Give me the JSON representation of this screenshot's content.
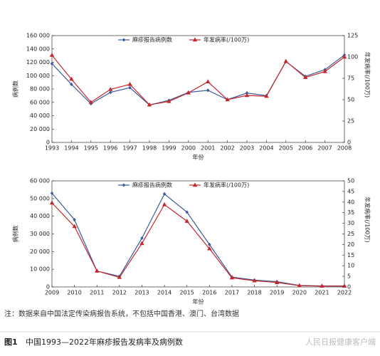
{
  "chart_data": [
    {
      "type": "line",
      "categories": [
        1993,
        1994,
        1995,
        1996,
        1997,
        1998,
        1999,
        2000,
        2001,
        2002,
        2003,
        2004,
        2005,
        2006,
        2007,
        2008
      ],
      "x_label": "年份",
      "y_label": "病例数",
      "y2_label": "年发病率(/100万)",
      "ylim": [
        0,
        160000
      ],
      "yticks": [
        0,
        {
          "value": 20000,
          "label": "20 000"
        },
        {
          "value": 40000,
          "label": "40 000"
        },
        {
          "value": 60000,
          "label": "60 000"
        },
        {
          "value": 80000,
          "label": "80 000"
        },
        {
          "value": 100000,
          "label": "100 000"
        },
        {
          "value": 120000,
          "label": "120 000"
        },
        {
          "value": 140000,
          "label": "140 000"
        },
        {
          "value": 160000,
          "label": "160 000"
        }
      ],
      "y2lim": [
        0,
        125
      ],
      "y2ticks": [
        0,
        25,
        50,
        75,
        100,
        125
      ],
      "legend": "top",
      "series": [
        {
          "name": "麻疹报告病例数",
          "color": "#3b5b9a",
          "marker": "diamond",
          "values": [
            118000,
            87000,
            58000,
            75000,
            82000,
            56000,
            63000,
            75000,
            78000,
            64000,
            74000,
            70000,
            121000,
            99000,
            109000,
            131000
          ]
        },
        {
          "name": "年发病率(/100万)",
          "color": "#c3282e",
          "marker": "triangle",
          "axis": "y2",
          "values": [
            102,
            74,
            47,
            62,
            68,
            44,
            48,
            58,
            71,
            50,
            55,
            54,
            95,
            76,
            83,
            100
          ]
        }
      ]
    },
    {
      "type": "line",
      "categories": [
        2009,
        2010,
        2011,
        2012,
        2013,
        2014,
        2015,
        2016,
        2017,
        2018,
        2019,
        2020,
        2021,
        2022
      ],
      "x_label": "年份",
      "y_label": "病例数",
      "y2_label": "年发病率(/100万)",
      "ylim": [
        0,
        60000
      ],
      "yticks": [
        0,
        {
          "value": 10000,
          "label": "10 000"
        },
        {
          "value": 20000,
          "label": "20 000"
        },
        {
          "value": 30000,
          "label": "30 000"
        },
        {
          "value": 40000,
          "label": "40 000"
        },
        {
          "value": 50000,
          "label": "50 000"
        },
        {
          "value": 60000,
          "label": "60 000"
        }
      ],
      "y2lim": [
        0,
        50
      ],
      "y2ticks": [
        0,
        5,
        10,
        15,
        20,
        25,
        30,
        35,
        40,
        45,
        50
      ],
      "legend": "top",
      "series": [
        {
          "name": "麻疹报告病例数",
          "color": "#3b5b9a",
          "marker": "diamond",
          "values": [
            53000,
            38000,
            9000,
            6000,
            27600,
            52600,
            42300,
            24000,
            5600,
            3900,
            3000,
            850,
            550,
            550
          ]
        },
        {
          "name": "年发病率(/100万)",
          "color": "#c3282e",
          "marker": "triangle",
          "axis": "y2",
          "values": [
            39.6,
            28.5,
            7.5,
            4.5,
            20.5,
            38.8,
            31,
            18,
            4.3,
            2.9,
            2.1,
            0.6,
            0.4,
            0.4
          ]
        }
      ]
    }
  ],
  "note": "注：数据来自中国法定传染病报告系统，不包括中国香港、澳门、台湾数据",
  "caption": {
    "label": "图1",
    "text": "中国1993—2022年麻疹报告发病率及病例数"
  },
  "watermark": "人民日报健康客户端"
}
